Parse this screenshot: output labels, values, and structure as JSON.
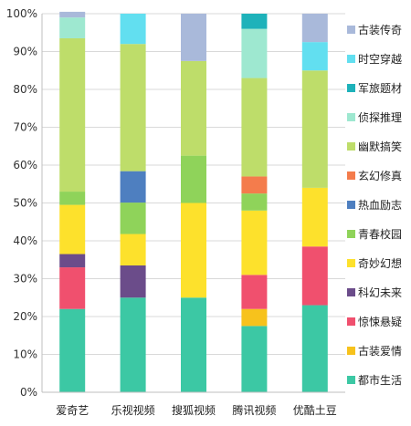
{
  "chart_data": {
    "type": "bar",
    "stacked": true,
    "categories": [
      "爱奇艺",
      "乐视视频",
      "搜狐视频",
      "腾讯视频",
      "优酷土豆"
    ],
    "ylim": [
      0,
      100
    ],
    "yticks": [
      "0%",
      "10%",
      "20%",
      "30%",
      "40%",
      "50%",
      "60%",
      "70%",
      "80%",
      "90%",
      "100%"
    ],
    "grid": true,
    "legend_position": "right",
    "series": [
      {
        "name": "都市生活",
        "color": "#3cc8a4",
        "values": [
          22,
          25,
          25,
          17.5,
          23
        ]
      },
      {
        "name": "古装爱情",
        "color": "#f7c21c",
        "values": [
          0,
          0,
          0,
          4.5,
          0
        ]
      },
      {
        "name": "惊悚悬疑",
        "color": "#f0506e",
        "values": [
          11,
          0,
          0,
          9,
          15.5
        ]
      },
      {
        "name": "科幻未来",
        "color": "#6b4c8a",
        "values": [
          3.5,
          8.5,
          0,
          0,
          0
        ]
      },
      {
        "name": "奇妙幻想",
        "color": "#fde12c",
        "values": [
          13,
          8.3,
          25,
          17,
          15.5
        ]
      },
      {
        "name": "青春校园",
        "color": "#8fd35a",
        "values": [
          3.5,
          8.3,
          12.5,
          4.5,
          0
        ]
      },
      {
        "name": "热血励志",
        "color": "#4e7fc0",
        "values": [
          0,
          8.3,
          0,
          0,
          0
        ]
      },
      {
        "name": "玄幻修真",
        "color": "#f47c4c",
        "values": [
          0,
          0,
          0,
          4.5,
          0
        ]
      },
      {
        "name": "幽默搞笑",
        "color": "#bedd6a",
        "values": [
          40.5,
          33.6,
          25,
          26,
          31
        ]
      },
      {
        "name": "侦探推理",
        "color": "#9ee8d0",
        "values": [
          5.5,
          0,
          0,
          13,
          0
        ]
      },
      {
        "name": "军旅题材",
        "color": "#1eb2ba",
        "values": [
          0,
          0,
          0,
          4,
          0
        ]
      },
      {
        "name": "时空穿越",
        "color": "#62dff0",
        "values": [
          0,
          8,
          0,
          0,
          7.5
        ]
      },
      {
        "name": "古装传奇",
        "color": "#a9b9da",
        "values": [
          1.5,
          0,
          12.5,
          0,
          7.5
        ]
      }
    ]
  }
}
